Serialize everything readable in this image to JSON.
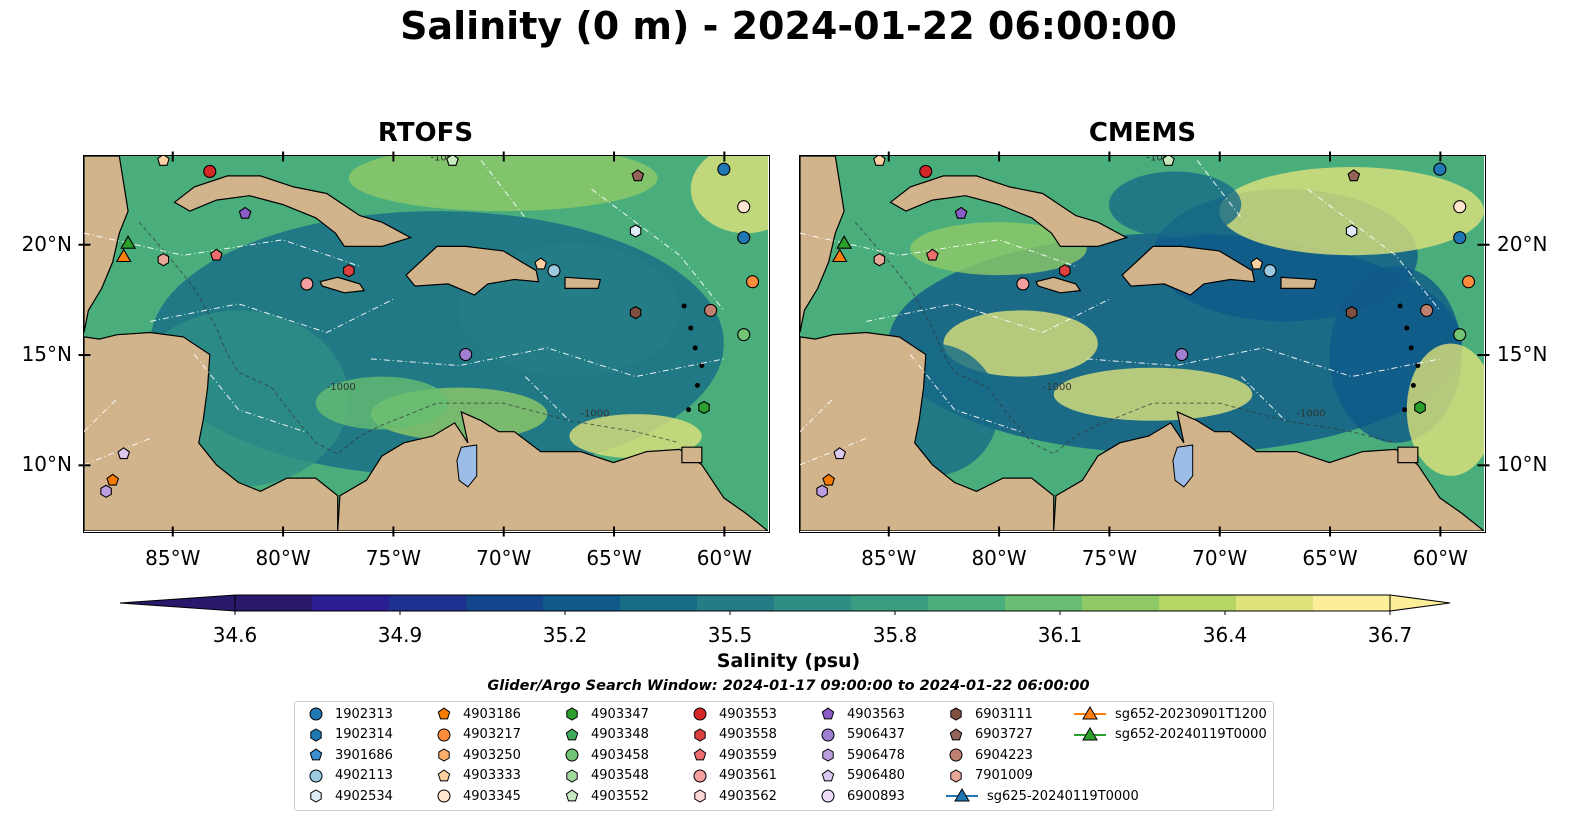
{
  "title": "Salinity (0 m) - 2024-01-22 06:00:00",
  "panels": [
    {
      "title": "RTOFS",
      "model": "rtofs"
    },
    {
      "title": "CMEMS",
      "model": "cmems"
    }
  ],
  "axes": {
    "lon_ticks": [
      "85°W",
      "80°W",
      "75°W",
      "70°W",
      "65°W",
      "60°W"
    ],
    "lon_values": [
      -85,
      -80,
      -75,
      -70,
      -65,
      -60
    ],
    "lat_ticks": [
      "20°N",
      "15°N",
      "10°N"
    ],
    "lat_values": [
      20,
      15,
      10
    ],
    "lon_range": [
      -89,
      -58
    ],
    "lat_range": [
      7,
      24
    ],
    "isobath_labels": [
      "-100",
      "-1000"
    ]
  },
  "colorbar": {
    "label": "Salinity (psu)",
    "ticks": [
      "34.6",
      "34.9",
      "35.2",
      "35.5",
      "35.8",
      "36.1",
      "36.4",
      "36.7"
    ],
    "range": [
      34.6,
      36.7
    ],
    "extend": "both",
    "colormap": "haline",
    "colors": [
      "#2a186c",
      "#2a1e92",
      "#1f3190",
      "#14468d",
      "#0f5a8a",
      "#176c87",
      "#247d86",
      "#2e8e84",
      "#399e81",
      "#4aae7c",
      "#67bd72",
      "#8ec966",
      "#b6d565",
      "#dde27a",
      "#fdef9a"
    ]
  },
  "search_window": "Glider/Argo Search Window: 2024-01-17 09:00:00 to 2024-01-22 06:00:00",
  "land_color": "#d2b48c",
  "lake_color": "#9bbde6",
  "legend": [
    {
      "label": "1902313",
      "marker": "circle",
      "color": "#1f77b4"
    },
    {
      "label": "1902314",
      "marker": "hexagon",
      "color": "#1f77b4"
    },
    {
      "label": "3901686",
      "marker": "pentagon",
      "color": "#3b8fd0"
    },
    {
      "label": "4902113",
      "marker": "circle",
      "color": "#9ecae1"
    },
    {
      "label": "4902534",
      "marker": "hexagon",
      "color": "#deebf7"
    },
    {
      "label": "4903186",
      "marker": "pentagon",
      "color": "#f57c00"
    },
    {
      "label": "4903217",
      "marker": "circle",
      "color": "#fd8d3c"
    },
    {
      "label": "4903250",
      "marker": "hexagon",
      "color": "#fdae6b"
    },
    {
      "label": "4903333",
      "marker": "pentagon",
      "color": "#fdd0a2"
    },
    {
      "label": "4903345",
      "marker": "circle",
      "color": "#fee6ce"
    },
    {
      "label": "4903347",
      "marker": "hexagon",
      "color": "#2ca02c"
    },
    {
      "label": "4903348",
      "marker": "pentagon",
      "color": "#41ab5d"
    },
    {
      "label": "4903458",
      "marker": "circle",
      "color": "#74c476"
    },
    {
      "label": "4903548",
      "marker": "hexagon",
      "color": "#a1d99b"
    },
    {
      "label": "4903552",
      "marker": "pentagon",
      "color": "#c7e9c0"
    },
    {
      "label": "4903553",
      "marker": "circle",
      "color": "#d62728"
    },
    {
      "label": "4903558",
      "marker": "hexagon",
      "color": "#de4040"
    },
    {
      "label": "4903559",
      "marker": "pentagon",
      "color": "#ec6d6d"
    },
    {
      "label": "4903561",
      "marker": "circle",
      "color": "#f4a09f"
    },
    {
      "label": "4903562",
      "marker": "hexagon",
      "color": "#fdd7d5"
    },
    {
      "label": "4903563",
      "marker": "pentagon",
      "color": "#8a5cc6"
    },
    {
      "label": "5906437",
      "marker": "circle",
      "color": "#a07fd0"
    },
    {
      "label": "5906478",
      "marker": "hexagon",
      "color": "#bc9fe0"
    },
    {
      "label": "5906480",
      "marker": "pentagon",
      "color": "#dcc9f0"
    },
    {
      "label": "6900893",
      "marker": "circle",
      "color": "#efdcf8"
    },
    {
      "label": "6903111",
      "marker": "hexagon",
      "color": "#7f4f3f"
    },
    {
      "label": "6903727",
      "marker": "pentagon",
      "color": "#96635a"
    },
    {
      "label": "6904223",
      "marker": "circle",
      "color": "#c08070"
    },
    {
      "label": "7901009",
      "marker": "hexagon",
      "color": "#e8a898"
    },
    {
      "label": "sg625-20240119T0000",
      "marker": "line-triangle",
      "color": "#1f77b4"
    },
    {
      "label": "sg652-20230901T1200",
      "marker": "line-triangle",
      "color": "#ff7f0e"
    },
    {
      "label": "sg652-20240119T0000",
      "marker": "line-triangle",
      "color": "#2ca02c"
    }
  ],
  "markers": [
    {
      "id": "4903333",
      "lon": -85.4,
      "lat": 23.8,
      "marker": "pentagon",
      "color": "#fdd0a2"
    },
    {
      "id": "4903553",
      "lon": -83.3,
      "lat": 23.3,
      "marker": "circle",
      "color": "#d62728"
    },
    {
      "id": "4903552",
      "lon": -72.3,
      "lat": 23.8,
      "marker": "pentagon",
      "color": "#c7e9c0"
    },
    {
      "id": "6903727",
      "lon": -63.9,
      "lat": 23.1,
      "marker": "pentagon",
      "color": "#96635a"
    },
    {
      "id": "1902313",
      "lon": -60.0,
      "lat": 23.4,
      "marker": "circle",
      "color": "#1f77b4"
    },
    {
      "id": "4903563",
      "lon": -81.7,
      "lat": 21.4,
      "marker": "pentagon",
      "color": "#8a5cc6"
    },
    {
      "id": "4903345",
      "lon": -59.1,
      "lat": 21.7,
      "marker": "circle",
      "color": "#fee6ce"
    },
    {
      "id": "4902534",
      "lon": -64.0,
      "lat": 20.6,
      "marker": "hexagon",
      "color": "#deebf7"
    },
    {
      "id": "1902313b",
      "lon": -59.1,
      "lat": 20.3,
      "marker": "circle",
      "color": "#1f77b4"
    },
    {
      "id": "7901009",
      "lon": -85.4,
      "lat": 19.3,
      "marker": "hexagon",
      "color": "#e8a898"
    },
    {
      "id": "4903559",
      "lon": -83.0,
      "lat": 19.5,
      "marker": "pentagon",
      "color": "#ec6d6d"
    },
    {
      "id": "4903561",
      "lon": -78.9,
      "lat": 18.2,
      "marker": "circle",
      "color": "#f4a09f"
    },
    {
      "id": "4903558",
      "lon": -77.0,
      "lat": 18.8,
      "marker": "hexagon",
      "color": "#de4040"
    },
    {
      "id": "4903333b",
      "lon": -68.3,
      "lat": 19.1,
      "marker": "pentagon",
      "color": "#fdd0a2"
    },
    {
      "id": "4902113",
      "lon": -67.7,
      "lat": 18.8,
      "marker": "circle",
      "color": "#9ecae1"
    },
    {
      "id": "4903217",
      "lon": -58.7,
      "lat": 18.3,
      "marker": "circle",
      "color": "#fd8d3c"
    },
    {
      "id": "6904223",
      "lon": -60.6,
      "lat": 17.0,
      "marker": "circle",
      "color": "#c08070"
    },
    {
      "id": "6903111",
      "lon": -64.0,
      "lat": 16.9,
      "marker": "hexagon",
      "color": "#7f4f3f"
    },
    {
      "id": "4903458",
      "lon": -59.1,
      "lat": 15.9,
      "marker": "circle",
      "color": "#74c476"
    },
    {
      "id": "5906437",
      "lon": -71.7,
      "lat": 15.0,
      "marker": "circle",
      "color": "#a07fd0"
    },
    {
      "id": "4903347",
      "lon": -60.9,
      "lat": 12.6,
      "marker": "hexagon",
      "color": "#2ca02c"
    },
    {
      "id": "5906480",
      "lon": -87.2,
      "lat": 10.5,
      "marker": "pentagon",
      "color": "#dcc9f0"
    },
    {
      "id": "4903186",
      "lon": -87.7,
      "lat": 9.3,
      "marker": "pentagon",
      "color": "#f57c00"
    },
    {
      "id": "5906478",
      "lon": -88.0,
      "lat": 8.8,
      "marker": "hexagon",
      "color": "#bc9fe0"
    },
    {
      "id": "sg652-20240119T0000",
      "lon": -87.0,
      "lat": 20.0,
      "marker": "triangle",
      "color": "#2ca02c"
    },
    {
      "id": "sg652-20230901T1200",
      "lon": -87.2,
      "lat": 19.4,
      "marker": "triangle",
      "color": "#ff7f0e"
    }
  ]
}
